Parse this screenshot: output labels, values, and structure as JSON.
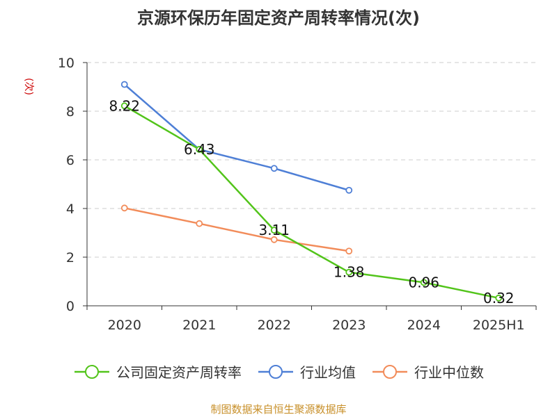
{
  "chart_data": {
    "type": "line",
    "title": "京源环保历年固定资产周转率情况(次)",
    "y_unit_label": "(次)",
    "categories": [
      "2020",
      "2021",
      "2022",
      "2023",
      "2024",
      "2025H1"
    ],
    "ylim": [
      0,
      10
    ],
    "y_ticks": [
      0,
      2,
      4,
      6,
      8,
      10
    ],
    "grid": true,
    "legend_position": "bottom",
    "series": [
      {
        "name": "公司固定资产周转率",
        "color": "#52c41a",
        "values": [
          8.22,
          6.43,
          3.11,
          1.38,
          0.96,
          0.32
        ],
        "labels": [
          "8.22",
          "6.43",
          "3.11",
          "1.38",
          "0.96",
          "0.32"
        ]
      },
      {
        "name": "行业均值",
        "color": "#4e7fd6",
        "values": [
          9.1,
          6.43,
          5.65,
          4.75,
          null,
          null
        ]
      },
      {
        "name": "行业中位数",
        "color": "#f28c5a",
        "values": [
          4.02,
          3.38,
          2.72,
          2.25,
          null,
          null
        ]
      }
    ]
  },
  "source": "制图数据来自恒生聚源数据库"
}
